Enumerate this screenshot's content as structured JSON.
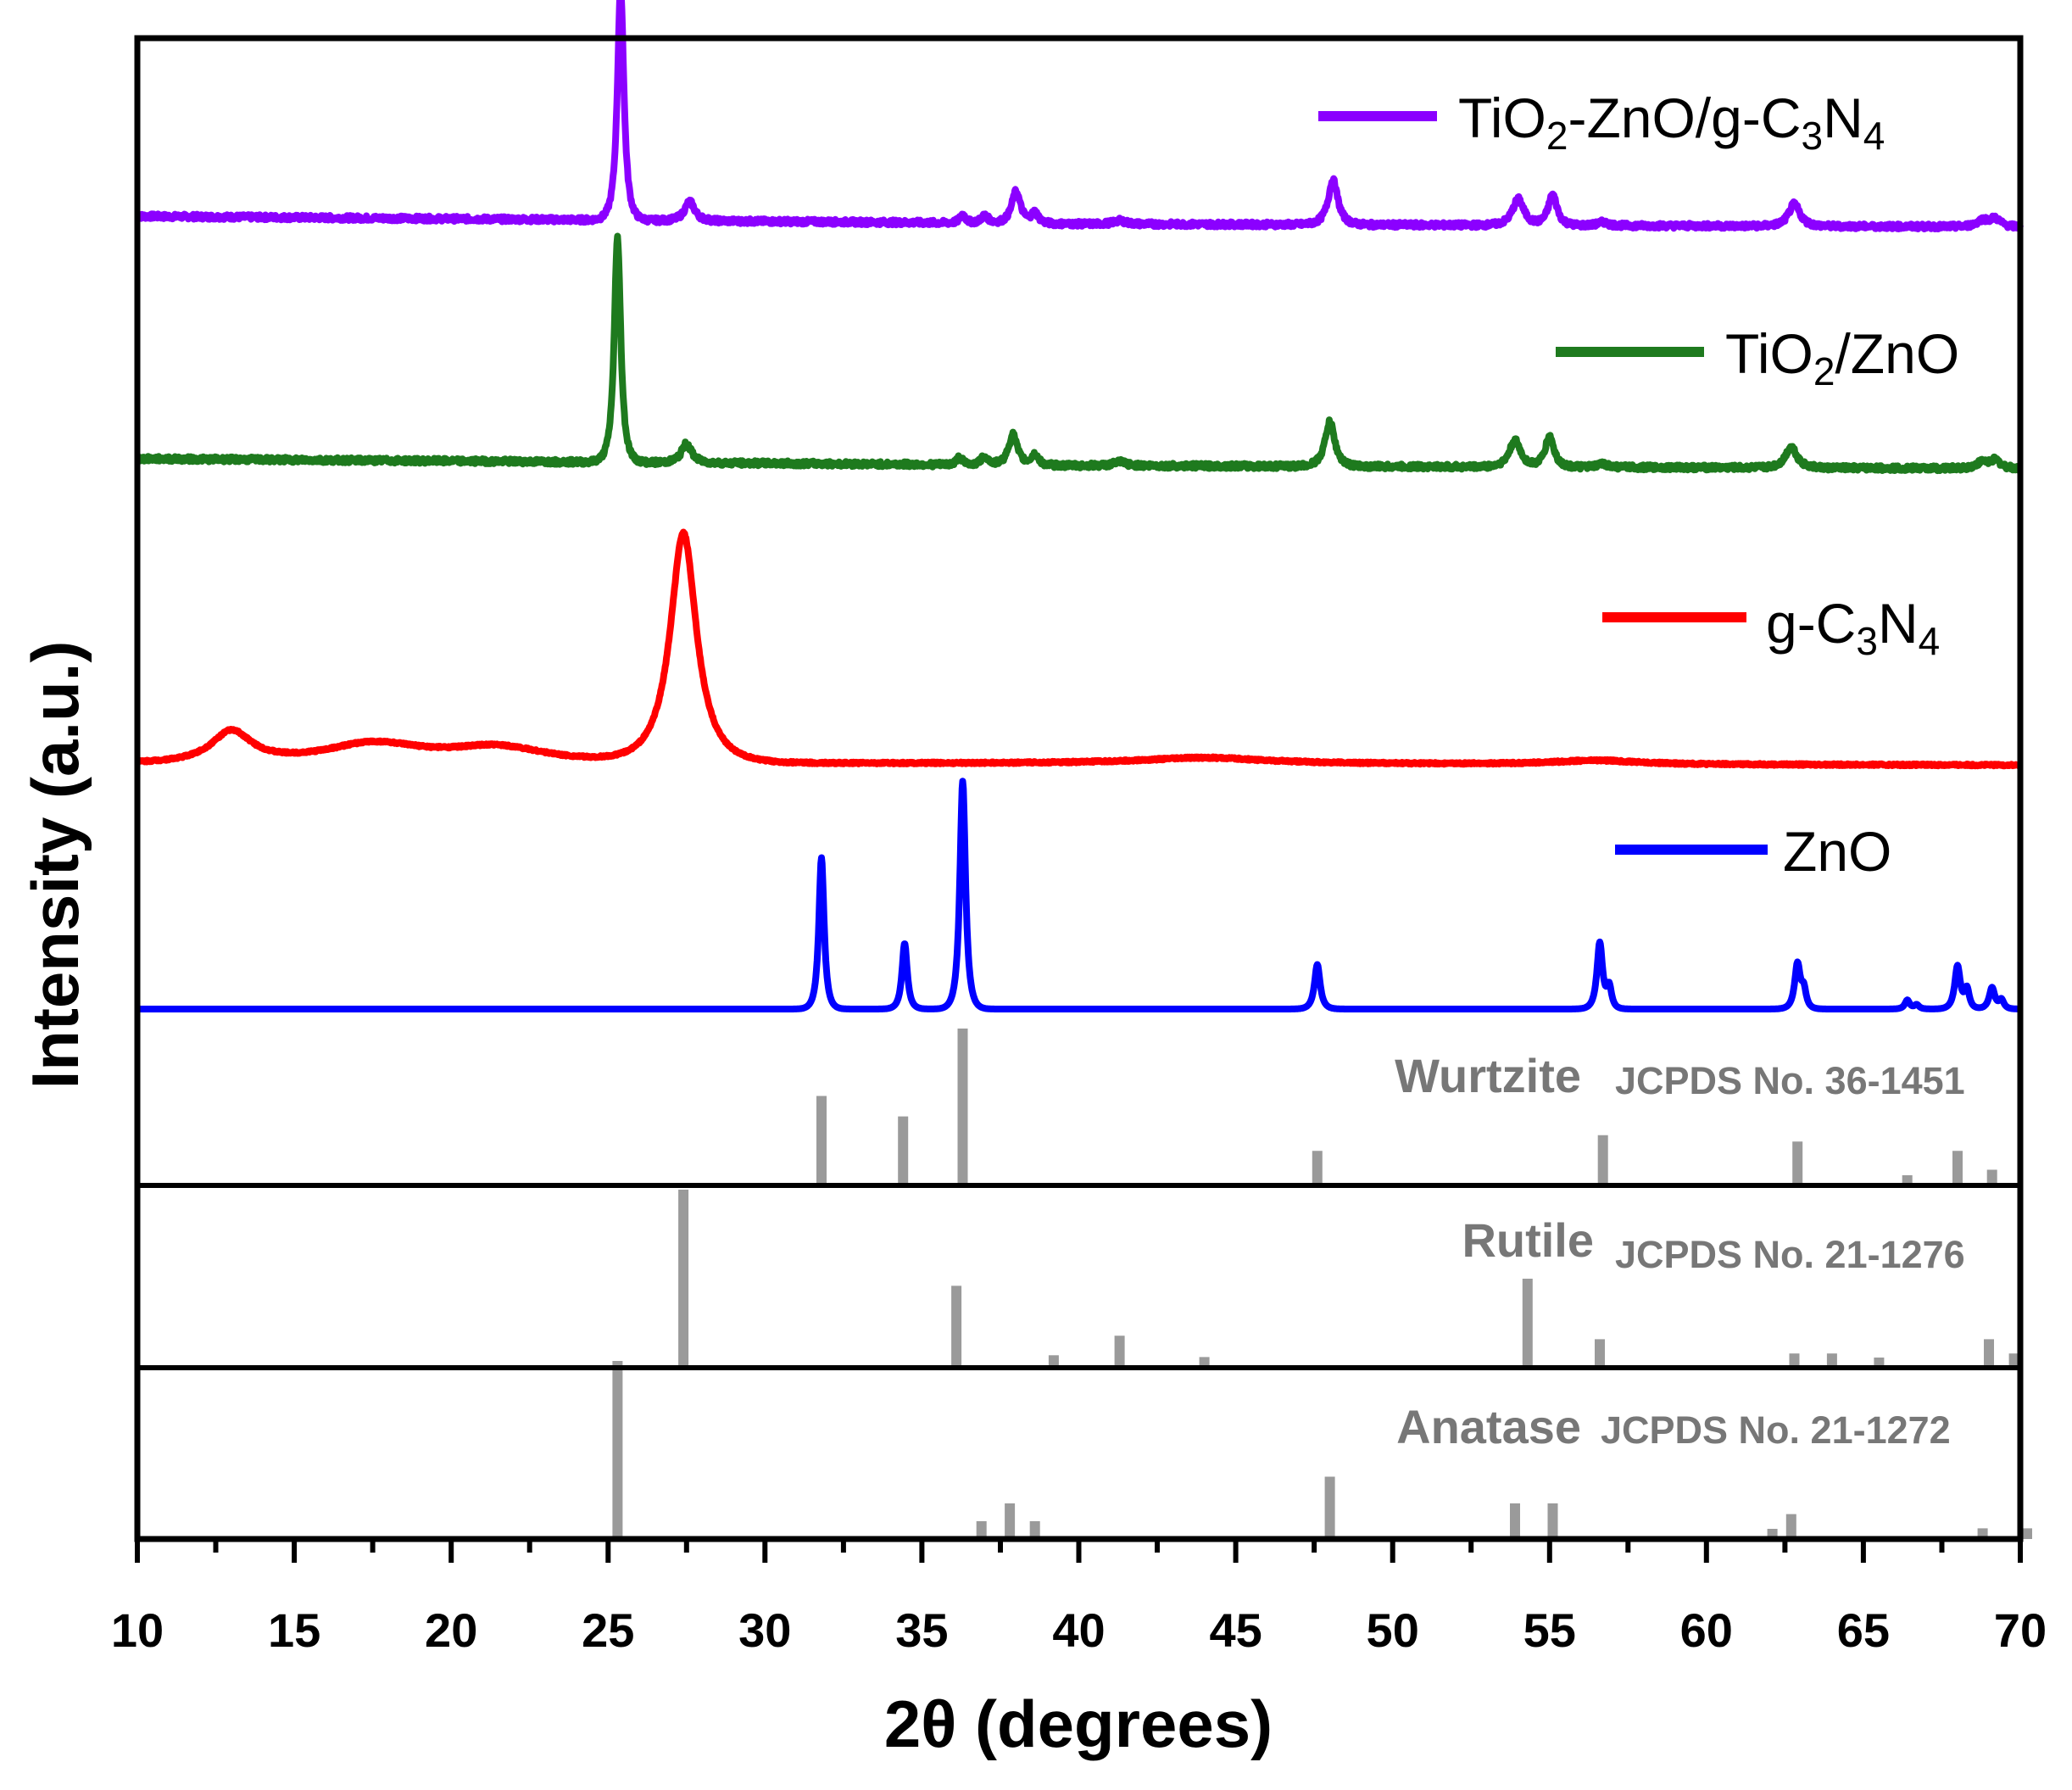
{
  "chart_data": {
    "type": "line",
    "xlabel": "2θ (degrees)",
    "ylabel": "Intensity (a.u.)",
    "xlim": [
      10,
      70
    ],
    "xticks": [
      "10",
      "15",
      "20",
      "25",
      "30",
      "35",
      "40",
      "45",
      "50",
      "55",
      "60",
      "65",
      "70"
    ],
    "series": [
      {
        "name": "TiO2-ZnO/g-C3N4",
        "legend": {
          "base": "TiO",
          "s1": "2",
          "mid": "-ZnO/g-C",
          "s2": "3",
          "mid2": "N",
          "s3": "4"
        },
        "color": "#8b00ff",
        "baseline": {
          "start": 0.9,
          "mid": 0.72,
          "end": 0.65
        },
        "peaks": [
          [
            25.4,
            5.5,
            0.16
          ],
          [
            27.6,
            0.45,
            0.25
          ],
          [
            36.3,
            0.2,
            0.14
          ],
          [
            37.0,
            0.18,
            0.18
          ],
          [
            38.0,
            0.75,
            0.22
          ],
          [
            38.6,
            0.25,
            0.18
          ],
          [
            41.3,
            0.08,
            0.3
          ],
          [
            48.1,
            1.05,
            0.24
          ],
          [
            54.0,
            0.62,
            0.28
          ],
          [
            55.1,
            0.72,
            0.22
          ],
          [
            56.7,
            0.08,
            0.25
          ],
          [
            62.8,
            0.52,
            0.28
          ],
          [
            68.8,
            0.15,
            0.3
          ],
          [
            69.2,
            0.18,
            0.25
          ]
        ]
      },
      {
        "name": "TiO2/ZnO",
        "legend": {
          "base": "TiO",
          "s1": "2",
          "mid": "/ZnO"
        },
        "color": "#1e7a1e",
        "baseline": {
          "start": 0.88,
          "mid": 0.72,
          "end": 0.65
        },
        "peaks": [
          [
            25.3,
            5.3,
            0.16
          ],
          [
            27.5,
            0.45,
            0.25
          ],
          [
            36.2,
            0.18,
            0.14
          ],
          [
            37.0,
            0.2,
            0.18
          ],
          [
            37.9,
            0.72,
            0.22
          ],
          [
            38.6,
            0.25,
            0.18
          ],
          [
            41.3,
            0.09,
            0.3
          ],
          [
            48.0,
            1.05,
            0.24
          ],
          [
            53.9,
            0.62,
            0.28
          ],
          [
            55.0,
            0.72,
            0.22
          ],
          [
            56.7,
            0.08,
            0.25
          ],
          [
            62.7,
            0.5,
            0.28
          ],
          [
            68.8,
            0.15,
            0.3
          ],
          [
            69.2,
            0.18,
            0.25
          ]
        ]
      },
      {
        "name": "g-C3N4",
        "legend": {
          "base": "g-C",
          "s1": "3",
          "mid": "N",
          "s2": "4"
        },
        "color": "#ff0000",
        "baseline": {
          "start": 0.0,
          "mid": 0.0,
          "end": -0.05
        },
        "peaks": [
          [
            13.0,
            0.8,
            1.0
          ],
          [
            17.5,
            0.5,
            2.5
          ],
          [
            21.5,
            0.4,
            2.5
          ],
          [
            27.4,
            6.0,
            0.65
          ],
          [
            44.0,
            0.15,
            3.0
          ],
          [
            56.5,
            0.1,
            2.0
          ]
        ]
      },
      {
        "name": "ZnO",
        "legend": {
          "base": "ZnO"
        },
        "color": "#0000ff",
        "baseline": {
          "start": 0.0,
          "mid": 0.0,
          "end": 0.0
        },
        "peaks": [
          [
            31.8,
            4.25,
            0.13
          ],
          [
            34.45,
            1.85,
            0.13
          ],
          [
            36.3,
            6.4,
            0.14
          ],
          [
            47.6,
            1.25,
            0.14
          ],
          [
            56.6,
            1.85,
            0.14
          ],
          [
            56.9,
            0.6,
            0.12
          ],
          [
            62.9,
            1.25,
            0.14
          ],
          [
            63.1,
            0.5,
            0.12
          ],
          [
            66.4,
            0.25,
            0.12
          ],
          [
            66.7,
            0.12,
            0.12
          ],
          [
            68.0,
            1.2,
            0.14
          ],
          [
            68.3,
            0.55,
            0.12
          ],
          [
            69.1,
            0.6,
            0.14
          ],
          [
            69.4,
            0.25,
            0.12
          ]
        ]
      }
    ],
    "references": [
      {
        "name": "Wurtzite",
        "card": "JCPDS No. 36-1451",
        "sticks": [
          [
            31.8,
            57
          ],
          [
            34.4,
            44
          ],
          [
            36.3,
            100
          ],
          [
            47.6,
            22
          ],
          [
            56.7,
            32
          ],
          [
            62.9,
            28
          ],
          [
            66.4,
            5
          ],
          [
            68.0,
            22
          ],
          [
            69.1,
            10
          ]
        ]
      },
      {
        "name": "Rutile",
        "card": "JCPDS No. 21-1276",
        "sticks": [
          [
            27.4,
            100
          ],
          [
            36.1,
            46
          ],
          [
            39.2,
            7
          ],
          [
            41.3,
            18
          ],
          [
            44.0,
            6
          ],
          [
            54.3,
            50
          ],
          [
            56.6,
            16
          ],
          [
            62.8,
            8
          ],
          [
            64.0,
            8
          ],
          [
            65.5,
            3
          ],
          [
            69.0,
            16
          ],
          [
            69.8,
            8
          ]
        ]
      },
      {
        "name": "Anatase",
        "card": "JCPDS No. 21-1272",
        "sticks": [
          [
            25.3,
            100
          ],
          [
            36.9,
            10
          ],
          [
            37.8,
            20
          ],
          [
            38.6,
            10
          ],
          [
            48.0,
            35
          ],
          [
            53.9,
            20
          ],
          [
            55.1,
            20
          ],
          [
            62.1,
            4
          ],
          [
            62.7,
            14
          ],
          [
            68.8,
            6
          ],
          [
            70.3,
            6
          ]
        ]
      }
    ]
  }
}
